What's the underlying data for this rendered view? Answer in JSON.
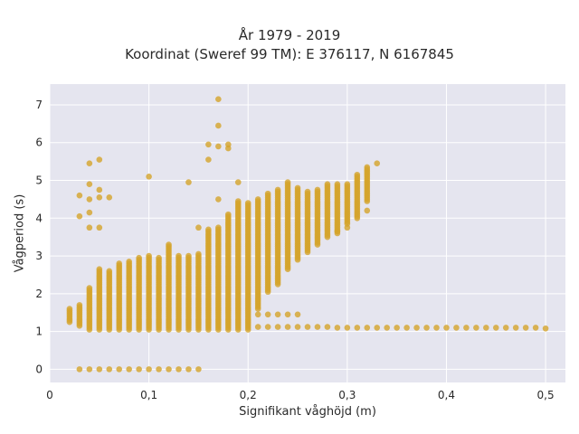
{
  "chart_data": {
    "type": "scatter",
    "title": "År 1979 - 2019",
    "subtitle": "Koordinat (Sweref 99 TM): E 376117, N 6167845",
    "xlabel": "Signifikant våghöjd (m)",
    "ylabel": "Vågperiod (s)",
    "xlim": [
      0,
      0.52
    ],
    "ylim": [
      -0.35,
      7.55
    ],
    "xticks": [
      0,
      0.1,
      0.2,
      0.3,
      0.4,
      0.5
    ],
    "xtick_labels": [
      "0",
      "0,1",
      "0,2",
      "0,3",
      "0,4",
      "0,5"
    ],
    "yticks": [
      0,
      1,
      2,
      3,
      4,
      5,
      6,
      7
    ],
    "ytick_labels": [
      "0",
      "1",
      "2",
      "3",
      "4",
      "5",
      "6",
      "7"
    ],
    "grid": true,
    "background_color": "#e5e5ef",
    "marker_color": "#d4a42a",
    "columns": [
      {
        "x": 0.02,
        "ymin": 1.25,
        "ymax": 1.6
      },
      {
        "x": 0.03,
        "ymin": 1.15,
        "ymax": 1.7
      },
      {
        "x": 0.04,
        "ymin": 1.05,
        "ymax": 2.15
      },
      {
        "x": 0.05,
        "ymin": 1.05,
        "ymax": 2.65
      },
      {
        "x": 0.06,
        "ymin": 1.05,
        "ymax": 2.6
      },
      {
        "x": 0.07,
        "ymin": 1.05,
        "ymax": 2.8
      },
      {
        "x": 0.08,
        "ymin": 1.05,
        "ymax": 2.85
      },
      {
        "x": 0.09,
        "ymin": 1.05,
        "ymax": 2.95
      },
      {
        "x": 0.1,
        "ymin": 1.05,
        "ymax": 3.0
      },
      {
        "x": 0.11,
        "ymin": 1.05,
        "ymax": 2.95
      },
      {
        "x": 0.12,
        "ymin": 1.05,
        "ymax": 3.3
      },
      {
        "x": 0.13,
        "ymin": 1.05,
        "ymax": 3.0
      },
      {
        "x": 0.14,
        "ymin": 1.05,
        "ymax": 3.0
      },
      {
        "x": 0.15,
        "ymin": 1.05,
        "ymax": 3.05
      },
      {
        "x": 0.16,
        "ymin": 1.05,
        "ymax": 3.7
      },
      {
        "x": 0.17,
        "ymin": 1.05,
        "ymax": 3.75
      },
      {
        "x": 0.18,
        "ymin": 1.05,
        "ymax": 4.1
      },
      {
        "x": 0.19,
        "ymin": 1.05,
        "ymax": 4.45
      },
      {
        "x": 0.2,
        "ymin": 1.05,
        "ymax": 4.4
      },
      {
        "x": 0.21,
        "ymin": 1.6,
        "ymax": 4.5
      },
      {
        "x": 0.22,
        "ymin": 2.05,
        "ymax": 4.65
      },
      {
        "x": 0.23,
        "ymin": 2.25,
        "ymax": 4.75
      },
      {
        "x": 0.24,
        "ymin": 2.65,
        "ymax": 4.95
      },
      {
        "x": 0.25,
        "ymin": 2.9,
        "ymax": 4.8
      },
      {
        "x": 0.26,
        "ymin": 3.1,
        "ymax": 4.7
      },
      {
        "x": 0.27,
        "ymin": 3.3,
        "ymax": 4.75
      },
      {
        "x": 0.28,
        "ymin": 3.5,
        "ymax": 4.9
      },
      {
        "x": 0.29,
        "ymin": 3.6,
        "ymax": 4.9
      },
      {
        "x": 0.3,
        "ymin": 3.85,
        "ymax": 4.9
      },
      {
        "x": 0.31,
        "ymin": 4.0,
        "ymax": 5.15
      },
      {
        "x": 0.32,
        "ymin": 4.45,
        "ymax": 5.35
      }
    ],
    "low_period_points": [
      {
        "x": 0.03,
        "y": 0
      },
      {
        "x": 0.04,
        "y": 0
      },
      {
        "x": 0.05,
        "y": 0
      },
      {
        "x": 0.06,
        "y": 0
      },
      {
        "x": 0.07,
        "y": 0
      },
      {
        "x": 0.08,
        "y": 0
      },
      {
        "x": 0.09,
        "y": 0
      },
      {
        "x": 0.1,
        "y": 0
      },
      {
        "x": 0.11,
        "y": 0
      },
      {
        "x": 0.12,
        "y": 0
      },
      {
        "x": 0.13,
        "y": 0
      },
      {
        "x": 0.14,
        "y": 0
      },
      {
        "x": 0.15,
        "y": 0
      }
    ],
    "tail_points": [
      {
        "x": 0.21,
        "y": 1.12
      },
      {
        "x": 0.22,
        "y": 1.12
      },
      {
        "x": 0.23,
        "y": 1.12
      },
      {
        "x": 0.24,
        "y": 1.12
      },
      {
        "x": 0.25,
        "y": 1.12
      },
      {
        "x": 0.26,
        "y": 1.12
      },
      {
        "x": 0.27,
        "y": 1.12
      },
      {
        "x": 0.28,
        "y": 1.12
      },
      {
        "x": 0.29,
        "y": 1.1
      },
      {
        "x": 0.3,
        "y": 1.1
      },
      {
        "x": 0.31,
        "y": 1.1
      },
      {
        "x": 0.32,
        "y": 1.1
      },
      {
        "x": 0.33,
        "y": 1.1
      },
      {
        "x": 0.34,
        "y": 1.1
      },
      {
        "x": 0.35,
        "y": 1.1
      },
      {
        "x": 0.36,
        "y": 1.1
      },
      {
        "x": 0.37,
        "y": 1.1
      },
      {
        "x": 0.38,
        "y": 1.1
      },
      {
        "x": 0.39,
        "y": 1.1
      },
      {
        "x": 0.4,
        "y": 1.1
      },
      {
        "x": 0.41,
        "y": 1.1
      },
      {
        "x": 0.42,
        "y": 1.1
      },
      {
        "x": 0.43,
        "y": 1.1
      },
      {
        "x": 0.44,
        "y": 1.1
      },
      {
        "x": 0.45,
        "y": 1.1
      },
      {
        "x": 0.46,
        "y": 1.1
      },
      {
        "x": 0.47,
        "y": 1.1
      },
      {
        "x": 0.48,
        "y": 1.1
      },
      {
        "x": 0.49,
        "y": 1.1
      },
      {
        "x": 0.5,
        "y": 1.08
      },
      {
        "x": 0.21,
        "y": 1.45
      },
      {
        "x": 0.22,
        "y": 1.45
      },
      {
        "x": 0.23,
        "y": 1.45
      },
      {
        "x": 0.24,
        "y": 1.45
      },
      {
        "x": 0.25,
        "y": 1.45
      }
    ],
    "outlier_points": [
      {
        "x": 0.03,
        "y": 4.6
      },
      {
        "x": 0.03,
        "y": 4.05
      },
      {
        "x": 0.04,
        "y": 5.45
      },
      {
        "x": 0.04,
        "y": 4.9
      },
      {
        "x": 0.04,
        "y": 4.5
      },
      {
        "x": 0.04,
        "y": 4.15
      },
      {
        "x": 0.04,
        "y": 3.75
      },
      {
        "x": 0.05,
        "y": 5.55
      },
      {
        "x": 0.05,
        "y": 4.75
      },
      {
        "x": 0.05,
        "y": 4.55
      },
      {
        "x": 0.05,
        "y": 3.75
      },
      {
        "x": 0.06,
        "y": 4.55
      },
      {
        "x": 0.1,
        "y": 5.1
      },
      {
        "x": 0.14,
        "y": 4.95
      },
      {
        "x": 0.15,
        "y": 3.75
      },
      {
        "x": 0.16,
        "y": 5.95
      },
      {
        "x": 0.16,
        "y": 5.55
      },
      {
        "x": 0.17,
        "y": 7.15
      },
      {
        "x": 0.17,
        "y": 6.45
      },
      {
        "x": 0.17,
        "y": 5.9
      },
      {
        "x": 0.17,
        "y": 4.5
      },
      {
        "x": 0.18,
        "y": 5.95
      },
      {
        "x": 0.18,
        "y": 5.85
      },
      {
        "x": 0.19,
        "y": 4.95
      },
      {
        "x": 0.29,
        "y": 3.65
      },
      {
        "x": 0.3,
        "y": 3.75
      },
      {
        "x": 0.32,
        "y": 4.2
      },
      {
        "x": 0.33,
        "y": 5.45
      }
    ]
  }
}
